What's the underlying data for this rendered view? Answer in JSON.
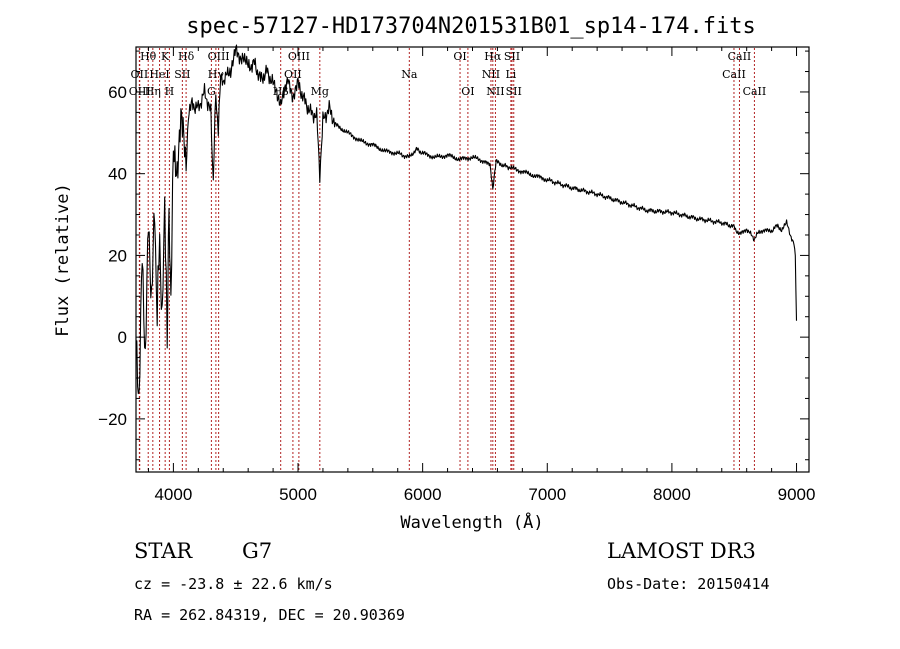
{
  "chart_data": {
    "type": "line",
    "title": "spec-57127-HD173704N201531B01_sp14-174.fits",
    "xlabel": "Wavelength (Å)",
    "ylabel": "Flux (relative)",
    "xlim": [
      3700,
      9100
    ],
    "ylim": [
      -33,
      71
    ],
    "xticks": [
      4000,
      5000,
      6000,
      7000,
      8000,
      9000
    ],
    "yticks": [
      -20,
      0,
      20,
      40,
      60
    ],
    "colors": {
      "spectrum": "#000000",
      "line_markers": "#b22222",
      "axes": "#000000"
    },
    "series": [
      {
        "name": "spectrum",
        "x": [
          3700,
          3725,
          3750,
          3775,
          3800,
          3825,
          3850,
          3870,
          3890,
          3910,
          3930,
          3950,
          3965,
          3980,
          4000,
          4030,
          4060,
          4090,
          4102,
          4120,
          4150,
          4200,
          4250,
          4300,
          4320,
          4340,
          4360,
          4380,
          4400,
          4430,
          4460,
          4500,
          4530,
          4560,
          4600,
          4650,
          4700,
          4750,
          4800,
          4840,
          4861,
          4880,
          4920,
          4960,
          5000,
          5050,
          5100,
          5150,
          5175,
          5200,
          5250,
          5300,
          5400,
          5500,
          5600,
          5700,
          5800,
          5890,
          5950,
          6000,
          6100,
          6200,
          6300,
          6400,
          6500,
          6540,
          6563,
          6590,
          6650,
          6700,
          6800,
          6900,
          7000,
          7200,
          7400,
          7600,
          7800,
          8000,
          8200,
          8400,
          8498,
          8542,
          8600,
          8662,
          8700,
          8800,
          8850,
          8880,
          8920,
          8950,
          8980,
          8990,
          9000
        ],
        "y": [
          0,
          -15,
          20,
          -5,
          28,
          10,
          30,
          5,
          25,
          2,
          35,
          -2,
          30,
          10,
          45,
          42,
          52,
          48,
          42,
          54,
          57,
          56,
          60,
          55,
          38,
          60,
          50,
          65,
          61,
          66,
          64,
          70,
          69,
          68,
          66,
          67,
          63,
          65,
          62,
          58,
          56,
          60,
          64,
          58,
          62,
          58,
          55,
          54,
          40,
          53,
          56,
          52,
          50,
          48,
          47,
          45.5,
          45,
          44,
          46,
          45,
          44,
          44.5,
          43.5,
          44,
          43,
          42,
          36,
          43,
          42,
          41.5,
          40.5,
          39.5,
          38.5,
          36.5,
          35,
          33,
          31,
          30.5,
          29,
          28,
          27,
          25,
          26.5,
          24,
          26,
          26,
          27.5,
          26,
          28,
          25,
          23,
          20,
          4
        ]
      }
    ],
    "line_markers": [
      {
        "label": "Hθ",
        "x": 3798,
        "row": 0
      },
      {
        "label": "OII",
        "x": 3727,
        "row": 1
      },
      {
        "label": "OIII",
        "x": 3730,
        "row": 2
      },
      {
        "label": "Hη",
        "x": 3835,
        "row": 2
      },
      {
        "label": "K",
        "x": 3934,
        "row": 0
      },
      {
        "label": "HeI",
        "x": 3889,
        "row": 1
      },
      {
        "label": "H",
        "x": 3968,
        "row": 2
      },
      {
        "label": "Hδ",
        "x": 4102,
        "row": 0
      },
      {
        "label": "SII",
        "x": 4072,
        "row": 1
      },
      {
        "label": "OIII",
        "x": 4363,
        "row": 0
      },
      {
        "label": "Hγ",
        "x": 4341,
        "row": 1
      },
      {
        "label": "G",
        "x": 4305,
        "row": 2
      },
      {
        "label": "OIII",
        "x": 5007,
        "row": 0
      },
      {
        "label": "OII",
        "x": 4959,
        "row": 1
      },
      {
        "label": "Hβ",
        "x": 4861,
        "row": 2
      },
      {
        "label": "Mg",
        "x": 5175,
        "row": 2
      },
      {
        "label": "Na",
        "x": 5893,
        "row": 1
      },
      {
        "label": "OI",
        "x": 6300,
        "row": 0
      },
      {
        "label": "OI",
        "x": 6363,
        "row": 2
      },
      {
        "label": "Hα",
        "x": 6563,
        "row": 0
      },
      {
        "label": "NII",
        "x": 6548,
        "row": 1
      },
      {
        "label": "NII",
        "x": 6584,
        "row": 2
      },
      {
        "label": "SII",
        "x": 6717,
        "row": 0
      },
      {
        "label": "Li",
        "x": 6708,
        "row": 1
      },
      {
        "label": "SII",
        "x": 6731,
        "row": 2
      },
      {
        "label": "CaII",
        "x": 8542,
        "row": 0
      },
      {
        "label": "CaII",
        "x": 8498,
        "row": 1
      },
      {
        "label": "CaII",
        "x": 8662,
        "row": 2
      }
    ]
  },
  "info": {
    "object_class": "STAR",
    "subclass": "G7",
    "survey": "LAMOST DR3",
    "redshift": "cz = -23.8 ± 22.6 km/s",
    "obs_date": "Obs-Date: 20150414",
    "coords": "RA = 262.84319, DEC =  20.90369"
  }
}
